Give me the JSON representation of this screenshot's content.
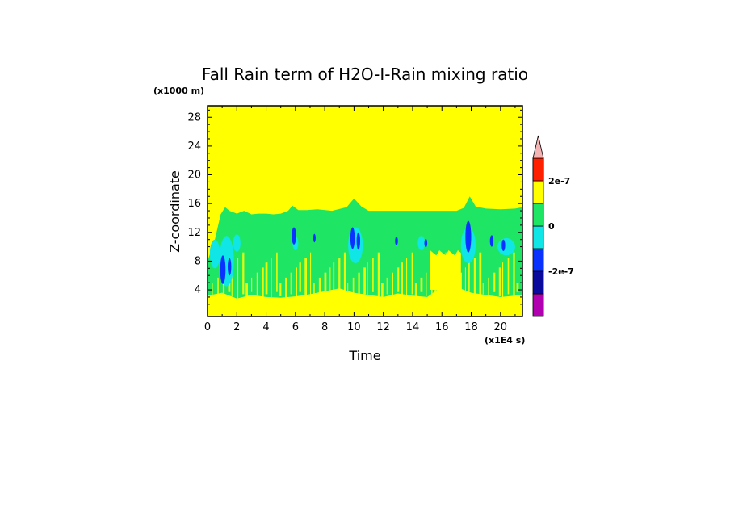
{
  "chart_data": {
    "type": "heatmap",
    "title": "Fall Rain term of H2O-I-Rain mixing ratio",
    "xlabel": "Time",
    "ylabel": "Z-coordinate",
    "x_unit": "(x1E4 s)",
    "y_unit": "(x1000 m)",
    "xlim": [
      0,
      21.5
    ],
    "ylim": [
      0.3,
      29.6
    ],
    "x_ticks": [
      0,
      2,
      4,
      6,
      8,
      10,
      12,
      14,
      16,
      18,
      20
    ],
    "y_ticks": [
      4,
      8,
      12,
      16,
      20,
      24,
      28
    ],
    "colorbar": {
      "levels": [
        -4e-07,
        -3e-07,
        -2e-07,
        -1e-07,
        0,
        1e-07,
        2e-07,
        3e-07
      ],
      "colors": [
        "#b000b0",
        "#0a0a9c",
        "#0a32ff",
        "#10e6e6",
        "#1ee664",
        "#ffff00",
        "#ffa500",
        "#ff2000"
      ],
      "extend_color": "#f5b4b4",
      "tick_labels": [
        {
          "value": 2e-07,
          "label": "2e-7"
        },
        {
          "value": 0,
          "label": "0"
        },
        {
          "value": -2e-07,
          "label": "-2e-7"
        }
      ]
    },
    "field_description": {
      "background_color": "#ffff00",
      "green_top_x": [
        0.0,
        0.5,
        0.9,
        1.2,
        1.5,
        2.0,
        2.5,
        3.0,
        3.5,
        4.0,
        4.5,
        5.0,
        5.5,
        5.8,
        6.2,
        6.8,
        7.5,
        8.5,
        9.5,
        10.0,
        10.5,
        11.0,
        12.0,
        13.0,
        14.0,
        15.0,
        16.0,
        17.0,
        17.5,
        17.9,
        18.3,
        19.0,
        20.0,
        21.0,
        21.5
      ],
      "green_top_z": [
        8.0,
        11.0,
        14.5,
        15.5,
        15.0,
        14.6,
        15.0,
        14.5,
        14.6,
        14.6,
        14.5,
        14.6,
        15.0,
        15.7,
        15.1,
        15.1,
        15.2,
        15.0,
        15.5,
        16.7,
        15.6,
        15.0,
        15.0,
        15.0,
        15.0,
        15.0,
        15.0,
        15.0,
        15.4,
        17.0,
        15.6,
        15.3,
        15.2,
        15.3,
        15.5
      ],
      "lower_yellow_x": [
        0.0,
        1.0,
        2.0,
        3.0,
        4.0,
        5.0,
        6.0,
        7.0,
        8.0,
        9.0,
        10.0,
        11.0,
        12.0,
        13.0,
        14.0,
        15.0,
        16.0,
        17.0,
        18.0,
        19.0,
        20.0,
        21.5
      ],
      "lower_yellow_z": [
        3.2,
        3.6,
        2.8,
        3.3,
        3.0,
        2.9,
        3.1,
        3.4,
        3.8,
        4.2,
        3.6,
        3.3,
        3.0,
        3.5,
        3.2,
        3.0,
        4.5,
        4.4,
        3.6,
        3.3,
        3.0,
        3.3
      ],
      "upper_yellow_patch": {
        "x": [
          15.2,
          17.3
        ],
        "z": [
          4.0,
          9.5
        ]
      },
      "cyan_patches": [
        {
          "x": 0.5,
          "z": 9.0,
          "rx": 0.35,
          "rz": 2.0
        },
        {
          "x": 1.3,
          "z": 8.0,
          "rx": 0.5,
          "rz": 3.5
        },
        {
          "x": 2.0,
          "z": 10.5,
          "rx": 0.25,
          "rz": 1.2
        },
        {
          "x": 10.1,
          "z": 10.2,
          "rx": 0.5,
          "rz": 2.5
        },
        {
          "x": 17.8,
          "z": 10.2,
          "rx": 0.5,
          "rz": 2.5
        },
        {
          "x": 20.4,
          "z": 10.0,
          "rx": 0.6,
          "rz": 1.2
        },
        {
          "x": 6.0,
          "z": 10.5,
          "rx": 0.2,
          "rz": 1.0
        },
        {
          "x": 14.6,
          "z": 10.5,
          "rx": 0.25,
          "rz": 1.0
        }
      ],
      "blue_patches": [
        {
          "x": 1.05,
          "z": 6.8,
          "rx": 0.18,
          "rz": 2.0
        },
        {
          "x": 1.5,
          "z": 7.2,
          "rx": 0.12,
          "rz": 1.2
        },
        {
          "x": 5.9,
          "z": 11.5,
          "rx": 0.15,
          "rz": 1.2
        },
        {
          "x": 9.9,
          "z": 11.2,
          "rx": 0.15,
          "rz": 1.5
        },
        {
          "x": 10.3,
          "z": 10.8,
          "rx": 0.12,
          "rz": 1.2
        },
        {
          "x": 17.8,
          "z": 11.4,
          "rx": 0.2,
          "rz": 2.2
        },
        {
          "x": 19.4,
          "z": 10.8,
          "rx": 0.12,
          "rz": 0.8
        },
        {
          "x": 20.2,
          "z": 10.2,
          "rx": 0.12,
          "rz": 0.8
        },
        {
          "x": 7.3,
          "z": 11.2,
          "rx": 0.08,
          "rz": 0.6
        },
        {
          "x": 12.9,
          "z": 10.8,
          "rx": 0.1,
          "rz": 0.6
        },
        {
          "x": 14.9,
          "z": 10.5,
          "rx": 0.1,
          "rz": 0.6
        }
      ]
    }
  }
}
